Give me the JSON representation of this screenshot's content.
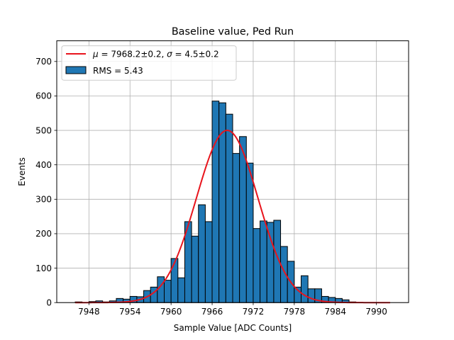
{
  "chart_data": {
    "type": "bar",
    "title": "Baseline value, Ped Run",
    "xlabel": "Sample Value [ADC Counts]",
    "ylabel": "Events",
    "xlim": [
      7943.3,
      7994.7
    ],
    "ylim": [
      0,
      760
    ],
    "xticks": [
      7948,
      7954,
      7960,
      7966,
      7972,
      7978,
      7984,
      7990
    ],
    "yticks": [
      0,
      100,
      200,
      300,
      400,
      500,
      600,
      700
    ],
    "grid": true,
    "legend_position": "upper-left",
    "bin_width": 1.0,
    "bin_start": 7946,
    "histogram_values": [
      2,
      0,
      3,
      5,
      2,
      5,
      12,
      10,
      18,
      17,
      35,
      45,
      75,
      65,
      128,
      72,
      235,
      193,
      284,
      235,
      585,
      580,
      547,
      433,
      482,
      405,
      215,
      237,
      233,
      239,
      163,
      120,
      45,
      78,
      40,
      40,
      18,
      15,
      12,
      8,
      2,
      0,
      0,
      0,
      0,
      0,
      0
    ],
    "series": [
      {
        "name": "RMS = 5.43",
        "kind": "histogram",
        "color": "#1f77b4",
        "edgecolor": "#000000"
      },
      {
        "name_parts": [
          "μ",
          " = 7968.2±0.2, ",
          "σ",
          " = 4.5±0.2"
        ],
        "kind": "gaussian-fit",
        "color": "#e8141c",
        "mu": 7968.2,
        "sigma": 4.5,
        "amplitude": 500,
        "x_range": [
          7946,
          7992
        ]
      }
    ]
  }
}
